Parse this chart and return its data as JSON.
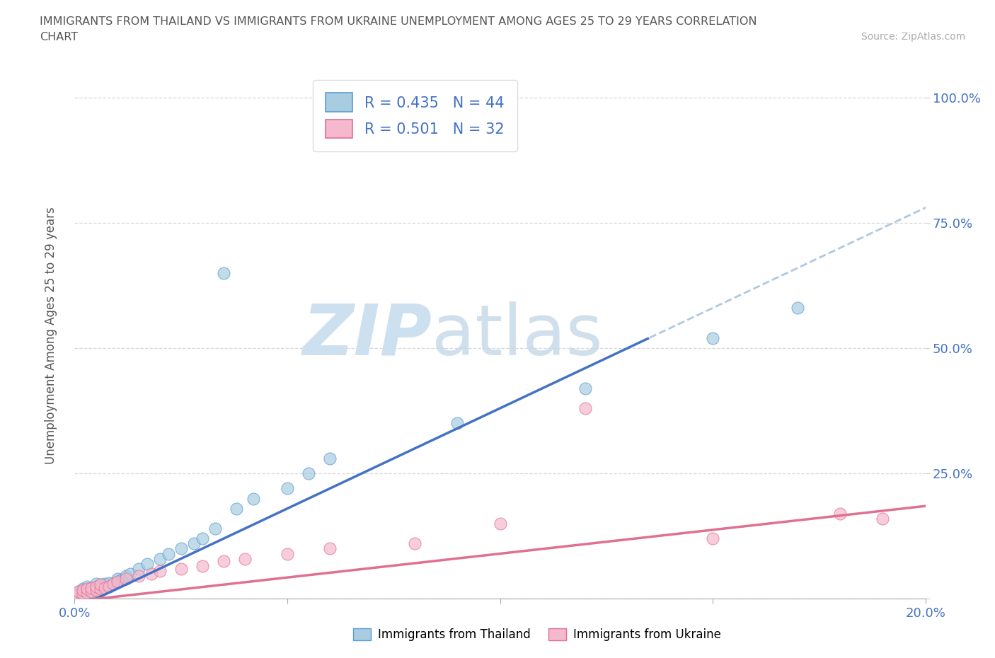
{
  "title_line1": "IMMIGRANTS FROM THAILAND VS IMMIGRANTS FROM UKRAINE UNEMPLOYMENT AMONG AGES 25 TO 29 YEARS CORRELATION",
  "title_line2": "CHART",
  "source_text": "Source: ZipAtlas.com",
  "ylabel": "Unemployment Among Ages 25 to 29 years",
  "legend1_label": "Immigrants from Thailand",
  "legend2_label": "Immigrants from Ukraine",
  "R_thailand": 0.435,
  "N_thailand": 44,
  "R_ukraine": 0.501,
  "N_ukraine": 32,
  "color_thailand_fill": "#a8cce0",
  "color_thailand_edge": "#5b9bd5",
  "color_ukraine_fill": "#f5b8cc",
  "color_ukraine_edge": "#e07090",
  "color_thailand_line": "#4472c4",
  "color_ukraine_line": "#e07090",
  "color_dashed": "#b0c8e0",
  "xlim": [
    0.0,
    0.2
  ],
  "ylim": [
    0.0,
    1.05
  ],
  "yticks": [
    0.0,
    0.25,
    0.5,
    0.75,
    1.0
  ],
  "ytick_labels": [
    "",
    "25.0%",
    "50.0%",
    "75.0%",
    "100.0%"
  ],
  "xticks": [
    0.0,
    0.05,
    0.1,
    0.15,
    0.2
  ],
  "xtick_labels": [
    "0.0%",
    "",
    "",
    "",
    "20.0%"
  ],
  "grid_color": "#d8d8d8",
  "bg_color": "#ffffff",
  "axis_tick_color": "#4472c4",
  "label_color": "#555555",
  "title_color": "#555555",
  "watermark_zip_color": "#cde0f0",
  "watermark_atlas_color": "#c5d8e8",
  "thailand_x": [
    0.001,
    0.001,
    0.002,
    0.002,
    0.002,
    0.003,
    0.003,
    0.003,
    0.004,
    0.004,
    0.004,
    0.005,
    0.005,
    0.005,
    0.006,
    0.006,
    0.007,
    0.007,
    0.008,
    0.008,
    0.009,
    0.01,
    0.01,
    0.011,
    0.012,
    0.013,
    0.015,
    0.017,
    0.02,
    0.022,
    0.025,
    0.028,
    0.03,
    0.033,
    0.035,
    0.038,
    0.042,
    0.05,
    0.055,
    0.06,
    0.09,
    0.12,
    0.15,
    0.17
  ],
  "thailand_y": [
    0.01,
    0.015,
    0.008,
    0.012,
    0.02,
    0.01,
    0.018,
    0.025,
    0.012,
    0.015,
    0.022,
    0.018,
    0.025,
    0.03,
    0.02,
    0.028,
    0.022,
    0.03,
    0.025,
    0.032,
    0.03,
    0.035,
    0.04,
    0.038,
    0.045,
    0.05,
    0.06,
    0.07,
    0.08,
    0.09,
    0.1,
    0.11,
    0.12,
    0.14,
    0.65,
    0.18,
    0.2,
    0.22,
    0.25,
    0.28,
    0.35,
    0.42,
    0.52,
    0.58
  ],
  "ukraine_x": [
    0.001,
    0.001,
    0.002,
    0.002,
    0.003,
    0.003,
    0.004,
    0.004,
    0.005,
    0.005,
    0.006,
    0.006,
    0.007,
    0.008,
    0.009,
    0.01,
    0.012,
    0.015,
    0.018,
    0.02,
    0.025,
    0.03,
    0.035,
    0.04,
    0.05,
    0.06,
    0.08,
    0.1,
    0.12,
    0.15,
    0.18,
    0.19
  ],
  "ukraine_y": [
    0.008,
    0.015,
    0.01,
    0.018,
    0.012,
    0.02,
    0.015,
    0.022,
    0.018,
    0.025,
    0.02,
    0.028,
    0.022,
    0.025,
    0.03,
    0.035,
    0.04,
    0.045,
    0.05,
    0.055,
    0.06,
    0.065,
    0.075,
    0.08,
    0.09,
    0.1,
    0.11,
    0.15,
    0.38,
    0.12,
    0.17,
    0.16
  ],
  "line_th_x0": 0.0,
  "line_th_y0": -0.02,
  "line_th_slope": 4.0,
  "line_th_solid_end": 0.135,
  "line_uk_x0": 0.0,
  "line_uk_y0": -0.005,
  "line_uk_slope": 0.95
}
